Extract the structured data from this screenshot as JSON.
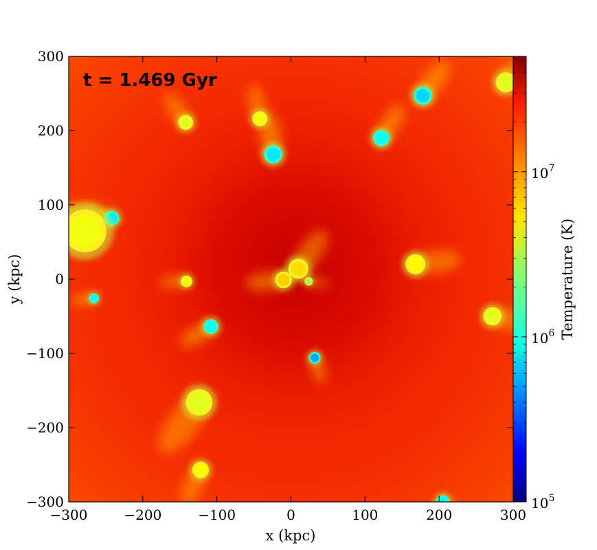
{
  "chart_data": {
    "type": "heatmap",
    "title": "",
    "annotation": "t = 1.469 Gyr",
    "xlabel": "x  (kpc)",
    "ylabel": "y  (kpc)",
    "xlim": [
      -300,
      300
    ],
    "ylim": [
      -300,
      300
    ],
    "xticks": [
      -300,
      -200,
      -100,
      0,
      100,
      200,
      300
    ],
    "yticks": [
      -300,
      -200,
      -100,
      0,
      100,
      200,
      300
    ],
    "xtick_labels": [
      "−300",
      "−200",
      "−100",
      "0",
      "100",
      "200",
      "300"
    ],
    "ytick_labels": [
      "−300",
      "−200",
      "−100",
      "0",
      "100",
      "200",
      "300"
    ],
    "grid": false,
    "colorbar": {
      "label": "Temperature  (K)",
      "scale": "log",
      "range": [
        100000,
        50000000
      ],
      "ticks": [
        100000,
        1000000,
        10000000
      ],
      "tick_bases": [
        "10",
        "10",
        "10"
      ],
      "tick_exponents": [
        "5",
        "6",
        "7"
      ],
      "colormap": "jet"
    },
    "background_temperature_K": 20000000,
    "central_temperature_K": 40000000,
    "cold_clumps": [
      {
        "x": 178,
        "y": 247,
        "r": 11,
        "T": 800000
      },
      {
        "x": 122,
        "y": 190,
        "r": 10,
        "T": 1100000
      },
      {
        "x": -24,
        "y": 168,
        "r": 11,
        "T": 900000
      },
      {
        "x": -242,
        "y": 82,
        "r": 9,
        "T": 900000
      },
      {
        "x": -108,
        "y": -64,
        "r": 9,
        "T": 1100000
      },
      {
        "x": 32,
        "y": -106,
        "r": 7,
        "T": 600000
      },
      {
        "x": -266,
        "y": -26,
        "r": 6,
        "T": 1100000
      },
      {
        "x": 205,
        "y": -300,
        "r": 8,
        "T": 1000000
      }
    ],
    "warm_clumps": [
      {
        "x": -142,
        "y": 211,
        "r": 9,
        "T": 4000000
      },
      {
        "x": -42,
        "y": 216,
        "r": 9,
        "T": 4500000
      },
      {
        "x": 10,
        "y": 14,
        "r": 12,
        "T": 6000000
      },
      {
        "x": -10,
        "y": -1,
        "r": 10,
        "T": 6500000
      },
      {
        "x": 24,
        "y": -3,
        "r": 5,
        "T": 2500000
      },
      {
        "x": -141,
        "y": -3,
        "r": 7,
        "T": 4500000
      },
      {
        "x": 168,
        "y": 20,
        "r": 12,
        "T": 5000000
      },
      {
        "x": 272,
        "y": -50,
        "r": 11,
        "T": 4000000
      },
      {
        "x": -124,
        "y": -166,
        "r": 16,
        "T": 4000000
      },
      {
        "x": -122,
        "y": -257,
        "r": 10,
        "T": 5000000
      },
      {
        "x": -278,
        "y": 65,
        "r": 26,
        "T": 4500000
      },
      {
        "x": 290,
        "y": 265,
        "r": 12,
        "T": 4000000
      }
    ]
  }
}
